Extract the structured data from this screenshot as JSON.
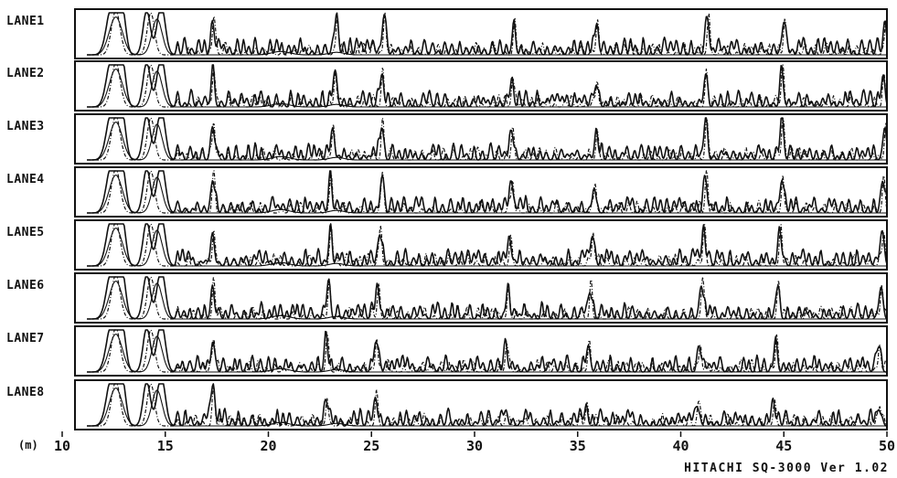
{
  "chart_data": {
    "type": "line",
    "title": "",
    "xlabel": "(m)",
    "ylabel": "",
    "xlim": [
      10,
      50
    ],
    "x_ticks": [
      10,
      15,
      20,
      25,
      30,
      35,
      40,
      45,
      50
    ],
    "grid": false,
    "legend": "none",
    "footer": "HITACHI SQ-3000 Ver 1.02",
    "lanes": [
      {
        "name": "LANE1",
        "major_peaks": [
          {
            "x": 17.3,
            "h": 0.85
          },
          {
            "x": 23.3,
            "h": 0.9
          },
          {
            "x": 25.6,
            "h": 1.0
          },
          {
            "x": 31.9,
            "h": 0.75
          },
          {
            "x": 35.9,
            "h": 0.7
          },
          {
            "x": 41.3,
            "h": 0.9
          },
          {
            "x": 45.0,
            "h": 0.85
          },
          {
            "x": 49.9,
            "h": 0.8
          }
        ]
      },
      {
        "name": "LANE2",
        "major_peaks": [
          {
            "x": 17.3,
            "h": 0.9
          },
          {
            "x": 23.2,
            "h": 0.8
          },
          {
            "x": 25.5,
            "h": 0.85
          },
          {
            "x": 31.8,
            "h": 0.65
          },
          {
            "x": 35.9,
            "h": 0.6
          },
          {
            "x": 41.2,
            "h": 0.85
          },
          {
            "x": 44.9,
            "h": 0.9
          },
          {
            "x": 49.8,
            "h": 0.75
          }
        ]
      },
      {
        "name": "LANE3",
        "major_peaks": [
          {
            "x": 17.3,
            "h": 0.9
          },
          {
            "x": 23.1,
            "h": 0.85
          },
          {
            "x": 25.5,
            "h": 0.9
          },
          {
            "x": 31.8,
            "h": 0.75
          },
          {
            "x": 35.9,
            "h": 0.65
          },
          {
            "x": 41.2,
            "h": 0.9
          },
          {
            "x": 44.9,
            "h": 0.9
          },
          {
            "x": 49.9,
            "h": 0.9
          }
        ]
      },
      {
        "name": "LANE4",
        "major_peaks": [
          {
            "x": 17.3,
            "h": 0.9
          },
          {
            "x": 23.0,
            "h": 0.85
          },
          {
            "x": 25.5,
            "h": 0.9
          },
          {
            "x": 31.8,
            "h": 0.75
          },
          {
            "x": 35.8,
            "h": 0.7
          },
          {
            "x": 41.2,
            "h": 0.9
          },
          {
            "x": 44.9,
            "h": 0.9
          },
          {
            "x": 49.8,
            "h": 0.85
          }
        ]
      },
      {
        "name": "LANE5",
        "major_peaks": [
          {
            "x": 17.3,
            "h": 0.85
          },
          {
            "x": 23.0,
            "h": 0.8
          },
          {
            "x": 25.4,
            "h": 0.85
          },
          {
            "x": 31.7,
            "h": 0.65
          },
          {
            "x": 35.7,
            "h": 0.8
          },
          {
            "x": 41.1,
            "h": 0.9
          },
          {
            "x": 44.8,
            "h": 0.85
          },
          {
            "x": 49.8,
            "h": 0.8
          }
        ]
      },
      {
        "name": "LANE6",
        "major_peaks": [
          {
            "x": 17.3,
            "h": 0.8
          },
          {
            "x": 22.9,
            "h": 0.85
          },
          {
            "x": 25.3,
            "h": 0.8
          },
          {
            "x": 31.6,
            "h": 0.65
          },
          {
            "x": 35.6,
            "h": 0.7
          },
          {
            "x": 41.0,
            "h": 0.85
          },
          {
            "x": 44.7,
            "h": 0.85
          },
          {
            "x": 49.7,
            "h": 0.8
          }
        ]
      },
      {
        "name": "LANE7",
        "major_peaks": [
          {
            "x": 17.3,
            "h": 0.8
          },
          {
            "x": 22.8,
            "h": 0.8
          },
          {
            "x": 25.2,
            "h": 0.8
          },
          {
            "x": 31.5,
            "h": 0.6
          },
          {
            "x": 35.5,
            "h": 0.65
          },
          {
            "x": 40.9,
            "h": 0.65
          },
          {
            "x": 44.6,
            "h": 0.75
          },
          {
            "x": 49.6,
            "h": 0.65
          }
        ]
      },
      {
        "name": "LANE8",
        "major_peaks": [
          {
            "x": 17.3,
            "h": 0.85
          },
          {
            "x": 22.8,
            "h": 0.65
          },
          {
            "x": 25.2,
            "h": 0.75
          },
          {
            "x": 31.5,
            "h": 0.3
          },
          {
            "x": 35.4,
            "h": 0.45
          },
          {
            "x": 40.8,
            "h": 0.5
          },
          {
            "x": 44.5,
            "h": 0.45
          },
          {
            "x": 49.6,
            "h": 0.45
          }
        ]
      }
    ]
  }
}
